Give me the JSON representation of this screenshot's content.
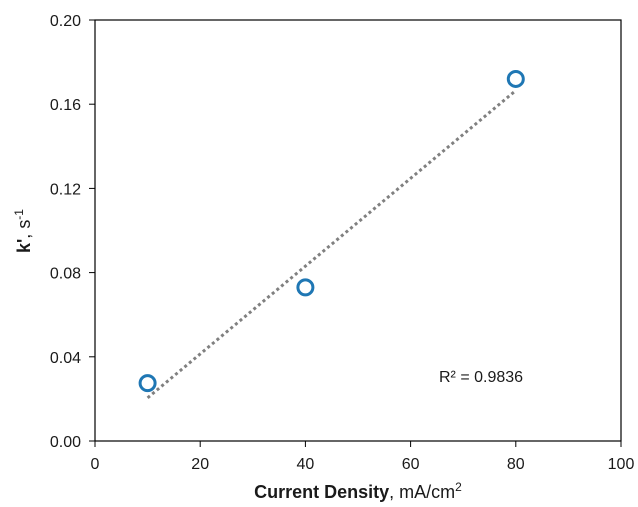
{
  "chart_data": {
    "type": "scatter",
    "xlabel": {
      "bold": "Current Density",
      "rest": ", mA/cm",
      "sup": "2"
    },
    "ylabel": {
      "bold": "k'",
      "rest": ", s",
      "sup": "-1"
    },
    "xlim": [
      0,
      100
    ],
    "ylim": [
      0,
      0.2
    ],
    "x_ticks": [
      0,
      20,
      40,
      60,
      80,
      100
    ],
    "x_tick_labels": [
      "0",
      "20",
      "40",
      "60",
      "80",
      "100"
    ],
    "y_ticks": [
      0,
      0.04,
      0.08,
      0.12,
      0.16,
      0.2
    ],
    "y_tick_labels": [
      "0.00",
      "0.04",
      "0.08",
      "0.12",
      "0.16",
      "0.20"
    ],
    "grid": false,
    "series": [
      {
        "marker": "open-circle",
        "color": "#1f77b4",
        "x": [
          10,
          40,
          80
        ],
        "y": [
          0.0275,
          0.073,
          0.172
        ]
      }
    ],
    "trendline": {
      "type": "linear",
      "style": "dotted",
      "color": "#808080",
      "x_start": 10,
      "y_start": 0.0205,
      "x_end": 80,
      "y_end": 0.1665
    },
    "annotations": [
      {
        "text": "R² = 0.9836"
      }
    ]
  }
}
